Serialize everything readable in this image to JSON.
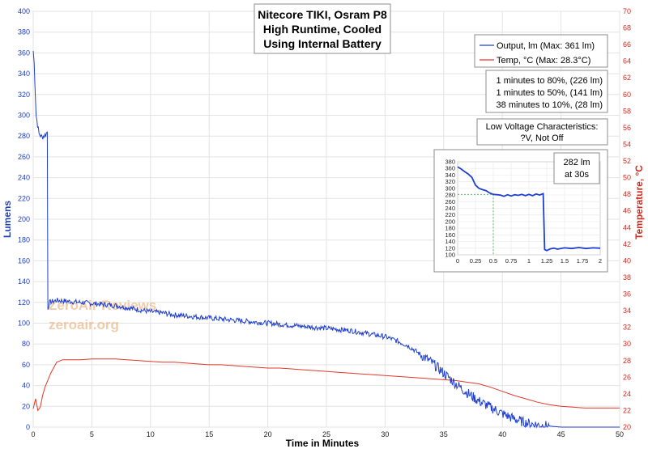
{
  "chart_data": {
    "type": "line",
    "title_lines": [
      "Nitecore TIKI, Osram P8",
      "High Runtime, Cooled",
      "Using Internal Battery"
    ],
    "xlabel": "Time in Minutes",
    "ylabel_left": "Lumens",
    "ylabel_right": "Temperature, °C",
    "xlim": [
      0,
      50
    ],
    "ylim_left": [
      0,
      400
    ],
    "ylim_right": [
      20,
      70
    ],
    "x_ticks": [
      0,
      5,
      10,
      15,
      20,
      25,
      30,
      35,
      40,
      45,
      50
    ],
    "y_left_ticks": [
      0,
      20,
      40,
      60,
      80,
      100,
      120,
      140,
      160,
      180,
      200,
      220,
      240,
      260,
      280,
      300,
      320,
      340,
      360,
      380,
      400
    ],
    "y_right_ticks": [
      20,
      22,
      24,
      26,
      28,
      30,
      32,
      34,
      36,
      38,
      40,
      42,
      44,
      46,
      48,
      50,
      52,
      54,
      56,
      58,
      60,
      62,
      64,
      66,
      68,
      70
    ],
    "grid": true,
    "legend": {
      "placement": "top-right",
      "entries": [
        "Output, lm (Max: 361 lm)",
        "Temp, °C (Max: 28.3°C)"
      ]
    },
    "colors": {
      "output": "#1f3fd0",
      "temp": "#e0382a",
      "left_axis": "#1f3fbf",
      "right_axis": "#d22a1e"
    },
    "series": [
      {
        "name": "Output, lm (Max: 361 lm)",
        "axis": "left",
        "x": [
          0,
          0.08,
          0.25,
          0.5,
          0.75,
          1.0,
          1.2,
          1.25,
          1.4,
          2,
          3,
          4,
          5,
          6,
          7,
          8,
          9,
          10,
          11,
          12,
          13,
          14,
          15,
          16,
          17,
          18,
          19,
          20,
          21,
          22,
          23,
          24,
          25,
          26,
          27,
          28,
          29,
          30,
          31,
          32,
          33,
          34,
          35,
          36,
          37,
          38,
          39,
          40,
          41,
          42,
          43,
          44,
          45,
          46,
          47,
          48,
          49,
          50
        ],
        "values": [
          362,
          350,
          300,
          282,
          279,
          281,
          284,
          115,
          120,
          122,
          121,
          120,
          119,
          118,
          117,
          115,
          113,
          111,
          110,
          108,
          107,
          106,
          105,
          104,
          103,
          102,
          101,
          100,
          99,
          98,
          97,
          96,
          95,
          94,
          93,
          91,
          89,
          87,
          83,
          78,
          70,
          62,
          52,
          42,
          33,
          25,
          19,
          13,
          8,
          4,
          2,
          1,
          0,
          0,
          0,
          0,
          0,
          0
        ]
      },
      {
        "name": "Temp, °C (Max: 28.3°C)",
        "axis": "right",
        "x": [
          0,
          0.2,
          0.4,
          0.6,
          0.8,
          1.0,
          1.5,
          2.0,
          2.5,
          3,
          4,
          5,
          6,
          7,
          8,
          9,
          10,
          11,
          12,
          13,
          14,
          15,
          16,
          17,
          18,
          19,
          20,
          21,
          22,
          23,
          24,
          25,
          26,
          27,
          28,
          29,
          30,
          31,
          32,
          33,
          34,
          35,
          36,
          37,
          38,
          39,
          40,
          41,
          42,
          43,
          44,
          45,
          46,
          47,
          48,
          49,
          50
        ],
        "values": [
          22.2,
          23.4,
          22.0,
          22.4,
          23.8,
          24.8,
          26.5,
          27.8,
          28.1,
          28.1,
          28.1,
          28.2,
          28.2,
          28.2,
          28.1,
          28.0,
          27.9,
          27.8,
          27.8,
          27.7,
          27.6,
          27.5,
          27.5,
          27.4,
          27.3,
          27.2,
          27.1,
          27.1,
          27.0,
          26.9,
          26.8,
          26.7,
          26.6,
          26.5,
          26.4,
          26.3,
          26.2,
          26.1,
          26.0,
          25.9,
          25.8,
          25.7,
          25.6,
          25.4,
          25.2,
          24.8,
          24.3,
          23.8,
          23.4,
          23.0,
          22.7,
          22.5,
          22.4,
          22.3,
          22.3,
          22.3,
          22.3
        ]
      }
    ],
    "annotations": {
      "milestones": [
        "1 minutes to 80%, (226 lm)",
        "1 minutes to 50%, (141 lm)",
        "38 minutes to 10%, (28 lm)"
      ],
      "low_voltage": [
        "Low Voltage Characteristics:",
        "?V, Not Off"
      ],
      "watermark": [
        "ZeroAir Reviews",
        "zeroair.org"
      ]
    },
    "inset": {
      "type": "line",
      "xlim": [
        0,
        2
      ],
      "ylim": [
        100,
        380
      ],
      "x_ticks": [
        0,
        0.25,
        0.5,
        0.75,
        1,
        1.25,
        1.5,
        1.75,
        2
      ],
      "y_ticks": [
        100,
        120,
        140,
        160,
        180,
        200,
        220,
        240,
        260,
        280,
        300,
        320,
        340,
        360,
        380
      ],
      "marker": {
        "x": 0.5,
        "y": 282
      },
      "label_lines": [
        "282 lm",
        "at 30s"
      ],
      "series": {
        "x": [
          0,
          0.05,
          0.1,
          0.15,
          0.2,
          0.25,
          0.3,
          0.35,
          0.4,
          0.45,
          0.5,
          0.55,
          0.6,
          0.65,
          0.7,
          0.75,
          0.8,
          0.85,
          0.9,
          0.95,
          1.0,
          1.05,
          1.1,
          1.15,
          1.2,
          1.22,
          1.25,
          1.3,
          1.35,
          1.4,
          1.5,
          1.6,
          1.7,
          1.8,
          1.9,
          2.0
        ],
        "values": [
          365,
          358,
          350,
          343,
          333,
          310,
          300,
          296,
          293,
          286,
          282,
          281,
          280,
          276,
          281,
          277,
          281,
          279,
          282,
          278,
          282,
          278,
          283,
          280,
          284,
          116,
          113,
          118,
          120,
          117,
          121,
          119,
          122,
          119,
          121,
          120
        ]
      }
    }
  }
}
